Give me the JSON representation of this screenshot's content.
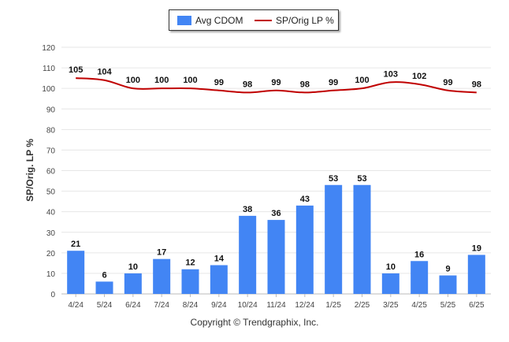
{
  "legend": {
    "bar_label": "Avg CDOM",
    "line_label": "SP/Orig LP %"
  },
  "footer": "Copyright © Trendgraphix, Inc.",
  "colors": {
    "bar": "#4285f4",
    "line": "#c00000",
    "grid": "#e6e6e6"
  },
  "chart_data": {
    "type": "bar",
    "categories": [
      "4/24",
      "5/24",
      "6/24",
      "7/24",
      "8/24",
      "9/24",
      "10/24",
      "11/24",
      "12/24",
      "1/25",
      "2/25",
      "3/25",
      "4/25",
      "5/25",
      "6/25"
    ],
    "series": [
      {
        "name": "Avg CDOM",
        "type": "bar",
        "values": [
          21,
          6,
          10,
          17,
          12,
          14,
          38,
          36,
          43,
          53,
          53,
          10,
          16,
          9,
          19
        ]
      },
      {
        "name": "SP/Orig LP %",
        "type": "line",
        "values": [
          105,
          104,
          100,
          100,
          100,
          99,
          98,
          99,
          98,
          99,
          100,
          103,
          102,
          99,
          98
        ]
      }
    ],
    "ylabel": "SP/Orig. LP %",
    "ylim": [
      0,
      120
    ],
    "yticks": [
      0,
      10,
      20,
      30,
      40,
      50,
      60,
      70,
      80,
      90,
      100,
      110,
      120
    ],
    "grid": true,
    "legend_position": "top-center"
  }
}
